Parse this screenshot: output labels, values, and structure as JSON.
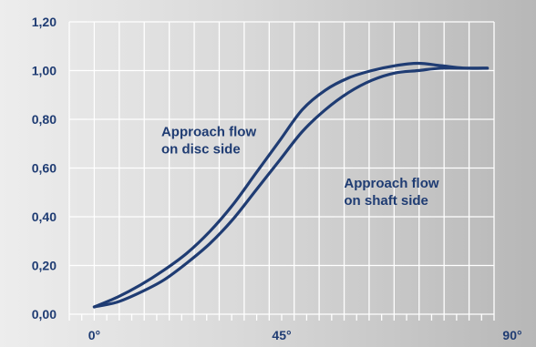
{
  "colors": {
    "axis_text": "#1f3c73",
    "curve": "#1f3c73",
    "grid": "#ffffff"
  },
  "chart_data": {
    "type": "line",
    "title": "",
    "xlabel": "",
    "ylabel": "",
    "xlim": [
      0,
      90
    ],
    "ylim": [
      0,
      1.2
    ],
    "grid": true,
    "x_ticks": [
      "0°",
      "45°",
      "90°"
    ],
    "y_ticks": [
      "0,00",
      "0,20",
      "0,40",
      "0,60",
      "0,80",
      "1,00",
      "1,20"
    ],
    "series": [
      {
        "x": [
          0,
          5,
          10,
          15,
          20,
          25,
          30,
          35,
          40,
          45,
          50,
          55,
          60,
          65,
          70,
          75,
          80,
          85
        ],
        "y": [
          0.03,
          0.07,
          0.12,
          0.18,
          0.25,
          0.34,
          0.45,
          0.58,
          0.71,
          0.84,
          0.92,
          0.97,
          1.0,
          1.02,
          1.03,
          1.02,
          1.01,
          1.01
        ]
      },
      {
        "x": [
          0,
          5,
          10,
          15,
          20,
          25,
          30,
          35,
          40,
          45,
          50,
          55,
          60,
          65,
          70,
          75,
          80,
          85
        ],
        "y": [
          0.03,
          0.05,
          0.09,
          0.14,
          0.21,
          0.29,
          0.39,
          0.51,
          0.63,
          0.75,
          0.84,
          0.91,
          0.96,
          0.99,
          1.0,
          1.01,
          1.01,
          1.01
        ]
      }
    ],
    "annotations": [
      {
        "lines": [
          "Approach flow",
          "on disc side"
        ],
        "x": 14.5,
        "y": 0.73
      },
      {
        "lines": [
          "Approach flow",
          "on shaft side"
        ],
        "x": 54,
        "y": 0.52
      }
    ]
  }
}
